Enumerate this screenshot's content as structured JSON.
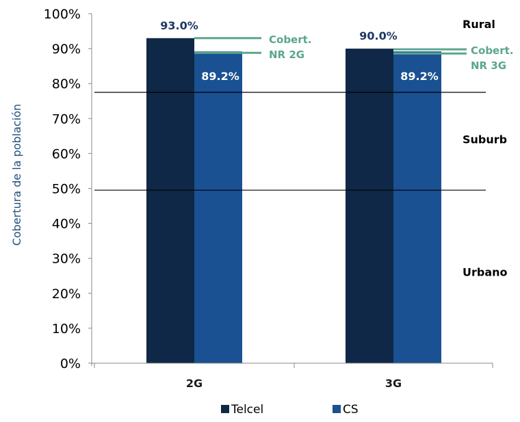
{
  "chart_data": {
    "type": "bar",
    "categories": [
      "2G",
      "3G"
    ],
    "series": [
      {
        "name": "Telcel",
        "values": [
          93.0,
          90.0
        ],
        "labels": [
          "93.0%",
          "90.0%"
        ]
      },
      {
        "name": "CS",
        "values": [
          89.2,
          89.2
        ],
        "labels": [
          "89.2%",
          "89.2%"
        ]
      }
    ],
    "ylabel": "Cobertura de la población",
    "ylim": [
      0,
      100
    ],
    "yticks": [
      0,
      10,
      20,
      30,
      40,
      50,
      60,
      70,
      80,
      90,
      100
    ],
    "ytick_labels": [
      "0%",
      "10%",
      "20%",
      "30%",
      "40%",
      "50%",
      "60%",
      "70%",
      "80%",
      "90%",
      "100%"
    ],
    "zone_lines": [
      77.5,
      49.5
    ],
    "zones": [
      {
        "label": "Rural",
        "y": 96.5
      },
      {
        "label": "Suburb",
        "y": 63.5
      },
      {
        "label": "Urbano",
        "y": 25.5
      }
    ],
    "coverage_lines": [
      {
        "category": "2G",
        "y": 93.0,
        "line1": "Cobert.",
        "line2": "NR 2G"
      },
      {
        "category": "2G",
        "y": 88.8
      },
      {
        "category": "3G",
        "y": 89.8,
        "line1": "Cobert.",
        "line2": "NR 3G"
      },
      {
        "category": "3G",
        "y": 88.6
      }
    ],
    "legend_position": "bottom",
    "colors": {
      "Telcel": "#0f2847",
      "CS": "#1a5192",
      "coverage": "#5aa68c",
      "ylabel": "#1f4e79",
      "data_label": "#1f3864"
    }
  }
}
